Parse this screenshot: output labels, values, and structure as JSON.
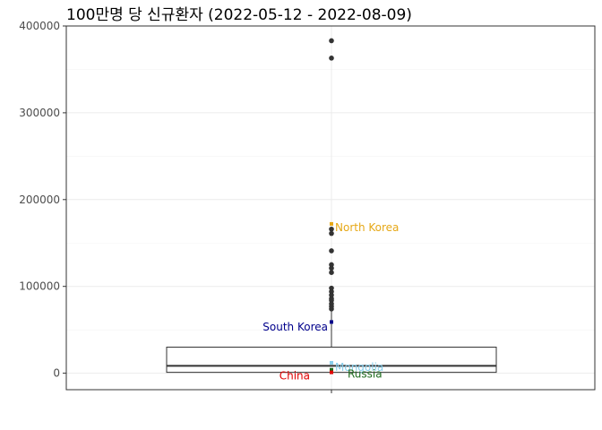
{
  "chart_data": {
    "type": "boxplot",
    "title": "100만명 당 신규환자 (2022-05-12 - 2022-08-09)",
    "xlabel": "",
    "ylabel": "",
    "ylim": [
      -19000,
      400000
    ],
    "yticks": [
      0,
      100000,
      200000,
      300000,
      400000
    ],
    "ytick_labels": [
      "0",
      "100000",
      "200000",
      "300000",
      "400000"
    ],
    "grid": true,
    "box": {
      "min": 0,
      "q1": 1000,
      "median": 8500,
      "q3": 30000,
      "whisker_high": 73000
    },
    "outliers": [
      383000,
      363000,
      166000,
      161000,
      141000,
      125000,
      121000,
      116000,
      98000,
      94000,
      90000,
      86000,
      84000,
      80000,
      77000,
      74000
    ],
    "highlights": [
      {
        "label": "North Korea",
        "value": 172000,
        "color": "#E6A817",
        "label_value": 168000,
        "side": "right"
      },
      {
        "label": "South Korea",
        "value": 59000,
        "color": "#00008B",
        "label_value": 53000,
        "side": "left"
      },
      {
        "label": "Mongolia",
        "value": 12000,
        "color": "#87CEEB",
        "label_value": 7000,
        "side": "right"
      },
      {
        "label": "Russia",
        "value": 4000,
        "color": "#1E6B1E",
        "label_value": -1000,
        "side": "right-far"
      },
      {
        "label": "China",
        "value": 1000,
        "color": "#E00000",
        "label_value": -3000,
        "side": "left-near"
      }
    ]
  }
}
